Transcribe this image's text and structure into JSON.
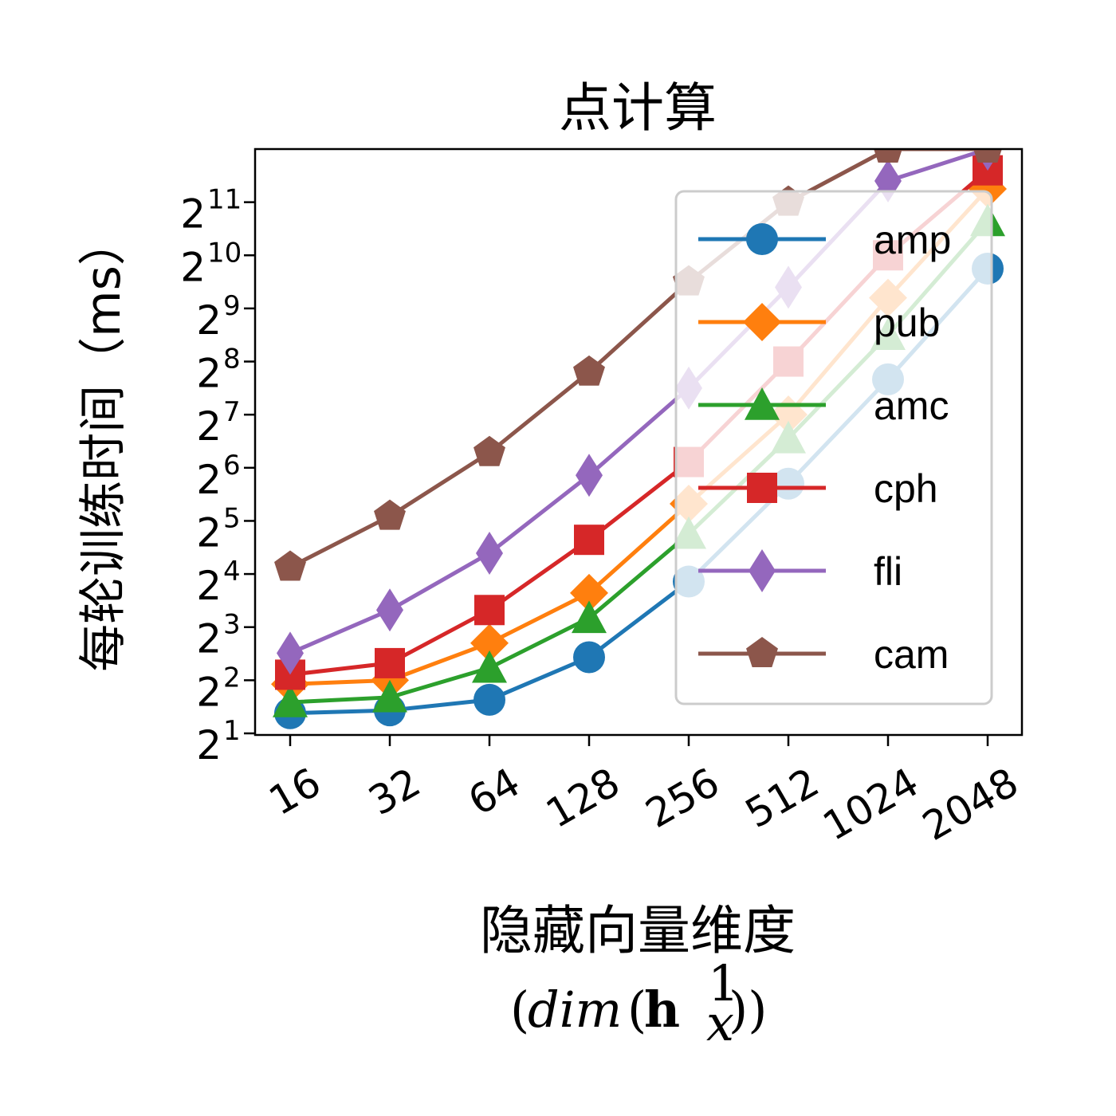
{
  "chart_data": {
    "type": "line",
    "title": "点计算",
    "ylabel": "每轮训练时间（ms）",
    "xlabel": "隐藏向量维度",
    "xlabel_math": "(dim(h_x^1))",
    "x_scale": "log2",
    "y_scale": "log2",
    "categories": [
      "16",
      "32",
      "64",
      "128",
      "256",
      "512",
      "1024",
      "2048"
    ],
    "y_ticks": [
      {
        "base": "2",
        "exp": "1"
      },
      {
        "base": "2",
        "exp": "2"
      },
      {
        "base": "2",
        "exp": "3"
      },
      {
        "base": "2",
        "exp": "4"
      },
      {
        "base": "2",
        "exp": "5"
      },
      {
        "base": "2",
        "exp": "6"
      },
      {
        "base": "2",
        "exp": "7"
      },
      {
        "base": "2",
        "exp": "8"
      },
      {
        "base": "2",
        "exp": "9"
      },
      {
        "base": "2",
        "exp": "10"
      },
      {
        "base": "2",
        "exp": "11"
      }
    ],
    "ylim_exp": [
      0.97,
      12.0
    ],
    "legend_position": "upper right",
    "series": [
      {
        "name": "amp",
        "color": "#1f77b4",
        "marker": "circle",
        "values": [
          2.6,
          2.7,
          3.1,
          5.4,
          14.5,
          52,
          203,
          861
        ]
      },
      {
        "name": "pub",
        "color": "#ff7f0e",
        "marker": "diamond",
        "values": [
          3.8,
          4.0,
          6.5,
          12.5,
          40,
          128,
          588,
          2435
        ]
      },
      {
        "name": "amc",
        "color": "#2ca02c",
        "marker": "triangle",
        "values": [
          3.0,
          3.2,
          4.7,
          9.0,
          27,
          94,
          362,
          1596
        ]
      },
      {
        "name": "cph",
        "color": "#d62728",
        "marker": "square",
        "values": [
          4.3,
          5.0,
          10,
          25,
          69,
          256,
          1024,
          3103
        ]
      },
      {
        "name": "fli",
        "color": "#9467bd",
        "marker": "thin-diamond",
        "values": [
          5.7,
          10,
          21,
          58,
          181,
          675,
          2702,
          4096
        ]
      },
      {
        "name": "cam",
        "color": "#8c564b",
        "marker": "pentagon",
        "values": [
          17.5,
          34,
          78,
          223,
          724,
          2048,
          4096,
          4096
        ]
      }
    ]
  }
}
